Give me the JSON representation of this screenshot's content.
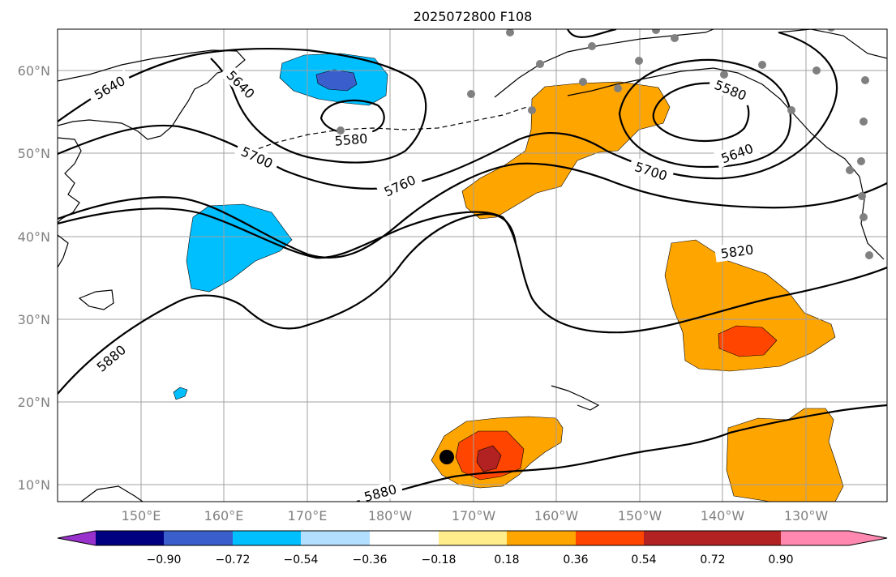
{
  "title": "2025072800 F108",
  "map": {
    "lat_labels": [
      "60°N",
      "50°N",
      "40°N",
      "30°N",
      "20°N",
      "10°N"
    ],
    "lon_labels": [
      "150°E",
      "160°E",
      "170°E",
      "180°W",
      "170°W",
      "160°W",
      "150°W",
      "140°W",
      "130°W"
    ],
    "contour_labels": [
      "5640",
      "5640",
      "5580",
      "5580",
      "5700",
      "5700",
      "5640",
      "5760",
      "5820",
      "5880",
      "5880"
    ],
    "shading_colors": {
      "strong_positive": "#ff4500",
      "very_strong_positive": "#b22222",
      "positive": "#ffa500",
      "negative": "#00bfff",
      "strong_negative": "#3a5fcd"
    }
  },
  "colorbar": {
    "ticks": [
      "−0.90",
      "−0.72",
      "−0.54",
      "−0.36",
      "−0.18",
      "0.18",
      "0.36",
      "0.54",
      "0.72",
      "0.90"
    ],
    "colors": [
      "#9932cc",
      "#000080",
      "#3a5fcd",
      "#00bfff",
      "#b2dfff",
      "#ffffff",
      "#ffec8b",
      "#ffa500",
      "#ff4500",
      "#b22222",
      "#ff88b0"
    ]
  }
}
